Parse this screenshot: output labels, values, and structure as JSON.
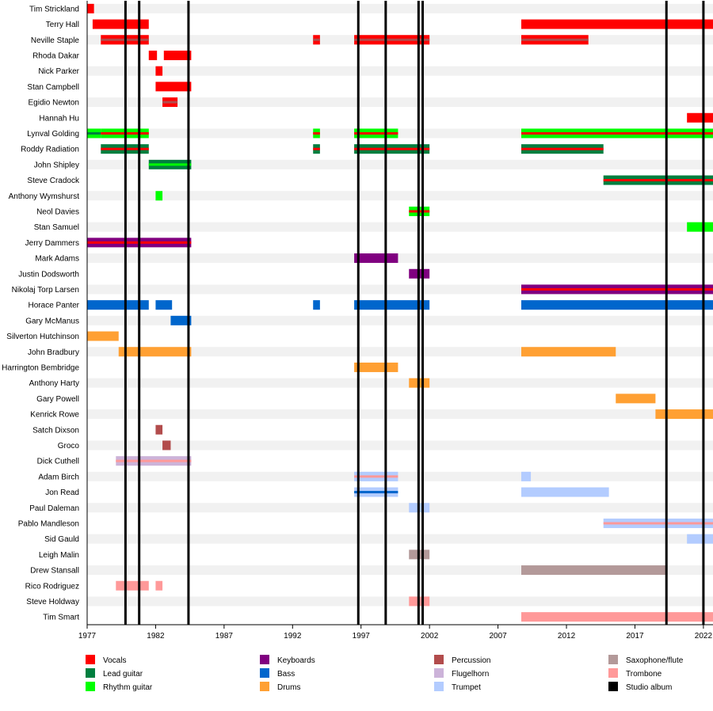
{
  "chart_data": {
    "type": "timeline",
    "title": "",
    "xlim": [
      1977.0,
      2022.7
    ],
    "x_ticks": [
      "1977",
      "1982",
      "1987",
      "1992",
      "1997",
      "2002",
      "2007",
      "2012",
      "2017",
      "2022"
    ],
    "x_tick_values": [
      1977,
      1982,
      1987,
      1992,
      1997,
      2002,
      2007,
      2012,
      2017,
      2022
    ],
    "grid": "alternating row stripes",
    "legend_position": "bottom",
    "role_colors": {
      "Vocals": "#ff0000",
      "Lead guitar": "#007f3f",
      "Rhythm guitar": "#00ff00",
      "Keyboards": "#800080",
      "Bass": "#0066cc",
      "Drums": "#ffa033",
      "Percussion": "#b24c4c",
      "Flugelhorn": "#ccb3d9",
      "Trumpet": "#b3ccff",
      "Saxophone/flute": "#b39999",
      "Trombone": "#ff9999",
      "Studio album": "#000000"
    },
    "legend": [
      "Vocals",
      "Keyboards",
      "Percussion",
      "Saxophone/flute",
      "Lead guitar",
      "Bass",
      "Flugelhorn",
      "Trombone",
      "Rhythm guitar",
      "Drums",
      "Trumpet",
      "Studio album"
    ],
    "studio_albums": [
      1979.8,
      1980.8,
      1984.4,
      1996.8,
      1998.8,
      2001.2,
      2001.5,
      2019.3,
      2022.0
    ],
    "members": [
      {
        "name": "Tim Strickland",
        "bars": [
          {
            "role": "Vocals",
            "start": 1977.0,
            "end": 1977.5
          }
        ]
      },
      {
        "name": "Terry Hall",
        "bars": [
          {
            "role": "Vocals",
            "start": 1977.4,
            "end": 1981.5
          },
          {
            "role": "Vocals",
            "start": 2008.7,
            "end": 2022.7
          }
        ]
      },
      {
        "name": "Neville Staple",
        "bars": [
          {
            "role": "Vocals",
            "start": 1978.0,
            "end": 1981.5,
            "accent": "Percussion"
          },
          {
            "role": "Vocals",
            "start": 1993.5,
            "end": 1994.0,
            "accent": "Percussion"
          },
          {
            "role": "Vocals",
            "start": 1996.5,
            "end": 2002.0,
            "accent": "Percussion"
          },
          {
            "role": "Vocals",
            "start": 2008.7,
            "end": 2013.6,
            "accent": "Percussion"
          }
        ]
      },
      {
        "name": "Rhoda Dakar",
        "bars": [
          {
            "role": "Vocals",
            "start": 1981.5,
            "end": 1982.1
          },
          {
            "role": "Vocals",
            "start": 1982.6,
            "end": 1984.6
          }
        ]
      },
      {
        "name": "Nick Parker",
        "bars": [
          {
            "role": "Vocals",
            "start": 1982.0,
            "end": 1982.5
          }
        ]
      },
      {
        "name": "Stan Campbell",
        "bars": [
          {
            "role": "Vocals",
            "start": 1982.0,
            "end": 1984.6
          }
        ]
      },
      {
        "name": "Egidio Newton",
        "bars": [
          {
            "role": "Vocals",
            "start": 1982.5,
            "end": 1983.6,
            "accent": "Percussion"
          }
        ]
      },
      {
        "name": "Hannah Hu",
        "bars": [
          {
            "role": "Vocals",
            "start": 2020.8,
            "end": 2022.7
          }
        ]
      },
      {
        "name": "Lynval Golding",
        "bars": [
          {
            "role": "Rhythm guitar",
            "start": 1977.0,
            "end": 1978.0,
            "accent": "Lead guitar"
          },
          {
            "role": "Rhythm guitar",
            "start": 1978.0,
            "end": 1981.5,
            "accent": "Vocals"
          },
          {
            "role": "Rhythm guitar",
            "start": 1993.5,
            "end": 1994.0,
            "accent": "Vocals"
          },
          {
            "role": "Rhythm guitar",
            "start": 1996.5,
            "end": 1999.7,
            "accent": "Vocals"
          },
          {
            "role": "Rhythm guitar",
            "start": 2008.7,
            "end": 2022.7,
            "accent": "Vocals"
          }
        ]
      },
      {
        "name": "Roddy Radiation",
        "bars": [
          {
            "role": "Lead guitar",
            "start": 1978.0,
            "end": 1981.5,
            "accent": "Vocals"
          },
          {
            "role": "Lead guitar",
            "start": 1993.5,
            "end": 1994.0,
            "accent": "Vocals"
          },
          {
            "role": "Lead guitar",
            "start": 1996.5,
            "end": 2002.0,
            "accent": "Vocals"
          },
          {
            "role": "Lead guitar",
            "start": 2008.7,
            "end": 2014.7,
            "accent": "Vocals"
          }
        ]
      },
      {
        "name": "John Shipley",
        "bars": [
          {
            "role": "Lead guitar",
            "start": 1981.5,
            "end": 1984.6,
            "accent": "Rhythm guitar"
          }
        ]
      },
      {
        "name": "Steve Cradock",
        "bars": [
          {
            "role": "Lead guitar",
            "start": 2014.7,
            "end": 2022.7,
            "accent": "Vocals"
          }
        ]
      },
      {
        "name": "Anthony Wymshurst",
        "bars": [
          {
            "role": "Rhythm guitar",
            "start": 1982.0,
            "end": 1982.5
          }
        ]
      },
      {
        "name": "Neol Davies",
        "bars": [
          {
            "role": "Rhythm guitar",
            "start": 2000.5,
            "end": 2002.0,
            "accent": "Vocals"
          }
        ]
      },
      {
        "name": "Stan Samuel",
        "bars": [
          {
            "role": "Rhythm guitar",
            "start": 2020.8,
            "end": 2022.7
          }
        ]
      },
      {
        "name": "Jerry Dammers",
        "bars": [
          {
            "role": "Keyboards",
            "start": 1977.0,
            "end": 1984.6,
            "accent": "Vocals"
          }
        ]
      },
      {
        "name": "Mark Adams",
        "bars": [
          {
            "role": "Keyboards",
            "start": 1996.5,
            "end": 1999.7
          }
        ]
      },
      {
        "name": "Justin Dodsworth",
        "bars": [
          {
            "role": "Keyboards",
            "start": 2000.5,
            "end": 2002.0
          }
        ]
      },
      {
        "name": "Nikolaj Torp Larsen",
        "bars": [
          {
            "role": "Keyboards",
            "start": 2008.7,
            "end": 2022.7,
            "accent": "Vocals"
          }
        ]
      },
      {
        "name": "Horace Panter",
        "bars": [
          {
            "role": "Bass",
            "start": 1977.0,
            "end": 1981.5
          },
          {
            "role": "Bass",
            "start": 1982.0,
            "end": 1983.2
          },
          {
            "role": "Bass",
            "start": 1993.5,
            "end": 1994.0
          },
          {
            "role": "Bass",
            "start": 1996.5,
            "end": 2002.0
          },
          {
            "role": "Bass",
            "start": 2008.7,
            "end": 2022.7
          }
        ]
      },
      {
        "name": "Gary McManus",
        "bars": [
          {
            "role": "Bass",
            "start": 1983.1,
            "end": 1984.6
          }
        ]
      },
      {
        "name": "Silverton Hutchinson",
        "bars": [
          {
            "role": "Drums",
            "start": 1977.0,
            "end": 1979.3
          }
        ]
      },
      {
        "name": "John Bradbury",
        "bars": [
          {
            "role": "Drums",
            "start": 1979.3,
            "end": 1984.6
          },
          {
            "role": "Drums",
            "start": 2008.7,
            "end": 2015.6
          }
        ]
      },
      {
        "name": "Harrington Bembridge",
        "bars": [
          {
            "role": "Drums",
            "start": 1996.5,
            "end": 1999.7
          }
        ]
      },
      {
        "name": "Anthony Harty",
        "bars": [
          {
            "role": "Drums",
            "start": 2000.5,
            "end": 2002.0
          }
        ]
      },
      {
        "name": "Gary Powell",
        "bars": [
          {
            "role": "Drums",
            "start": 2015.6,
            "end": 2018.5
          }
        ]
      },
      {
        "name": "Kenrick Rowe",
        "bars": [
          {
            "role": "Drums",
            "start": 2018.5,
            "end": 2022.7
          }
        ]
      },
      {
        "name": "Satch Dixson",
        "bars": [
          {
            "role": "Percussion",
            "start": 1982.0,
            "end": 1982.5
          }
        ]
      },
      {
        "name": "Groco",
        "bars": [
          {
            "role": "Percussion",
            "start": 1982.5,
            "end": 1983.1
          }
        ]
      },
      {
        "name": "Dick Cuthell",
        "bars": [
          {
            "role": "Flugelhorn",
            "start": 1979.1,
            "end": 1984.6,
            "accent": "Trombone"
          }
        ]
      },
      {
        "name": "Adam Birch",
        "bars": [
          {
            "role": "Trumpet",
            "start": 1996.5,
            "end": 1999.7,
            "accent": "Trombone"
          },
          {
            "role": "Trumpet",
            "start": 2008.7,
            "end": 2009.4
          }
        ]
      },
      {
        "name": "Jon Read",
        "bars": [
          {
            "role": "Trumpet",
            "start": 1996.5,
            "end": 1999.7,
            "accent": "Bass"
          },
          {
            "role": "Trumpet",
            "start": 2008.7,
            "end": 2015.1
          }
        ]
      },
      {
        "name": "Paul Daleman",
        "bars": [
          {
            "role": "Trumpet",
            "start": 2000.5,
            "end": 2002.0
          }
        ]
      },
      {
        "name": "Pablo Mandleson",
        "bars": [
          {
            "role": "Trumpet",
            "start": 2014.7,
            "end": 2022.7,
            "accent": "Trombone"
          }
        ]
      },
      {
        "name": "Sid Gauld",
        "bars": [
          {
            "role": "Trumpet",
            "start": 2020.8,
            "end": 2022.7
          }
        ]
      },
      {
        "name": "Leigh Malin",
        "bars": [
          {
            "role": "Saxophone/flute",
            "start": 2000.5,
            "end": 2002.0
          }
        ]
      },
      {
        "name": "Drew Stansall",
        "bars": [
          {
            "role": "Saxophone/flute",
            "start": 2008.7,
            "end": 2019.3
          }
        ]
      },
      {
        "name": "Rico Rodriguez",
        "bars": [
          {
            "role": "Trombone",
            "start": 1979.1,
            "end": 1981.5
          },
          {
            "role": "Trombone",
            "start": 1982.0,
            "end": 1982.5
          }
        ]
      },
      {
        "name": "Steve Holdway",
        "bars": [
          {
            "role": "Trombone",
            "start": 2000.5,
            "end": 2002.0
          }
        ]
      },
      {
        "name": "Tim Smart",
        "bars": [
          {
            "role": "Trombone",
            "start": 2008.7,
            "end": 2022.7
          }
        ]
      }
    ]
  }
}
